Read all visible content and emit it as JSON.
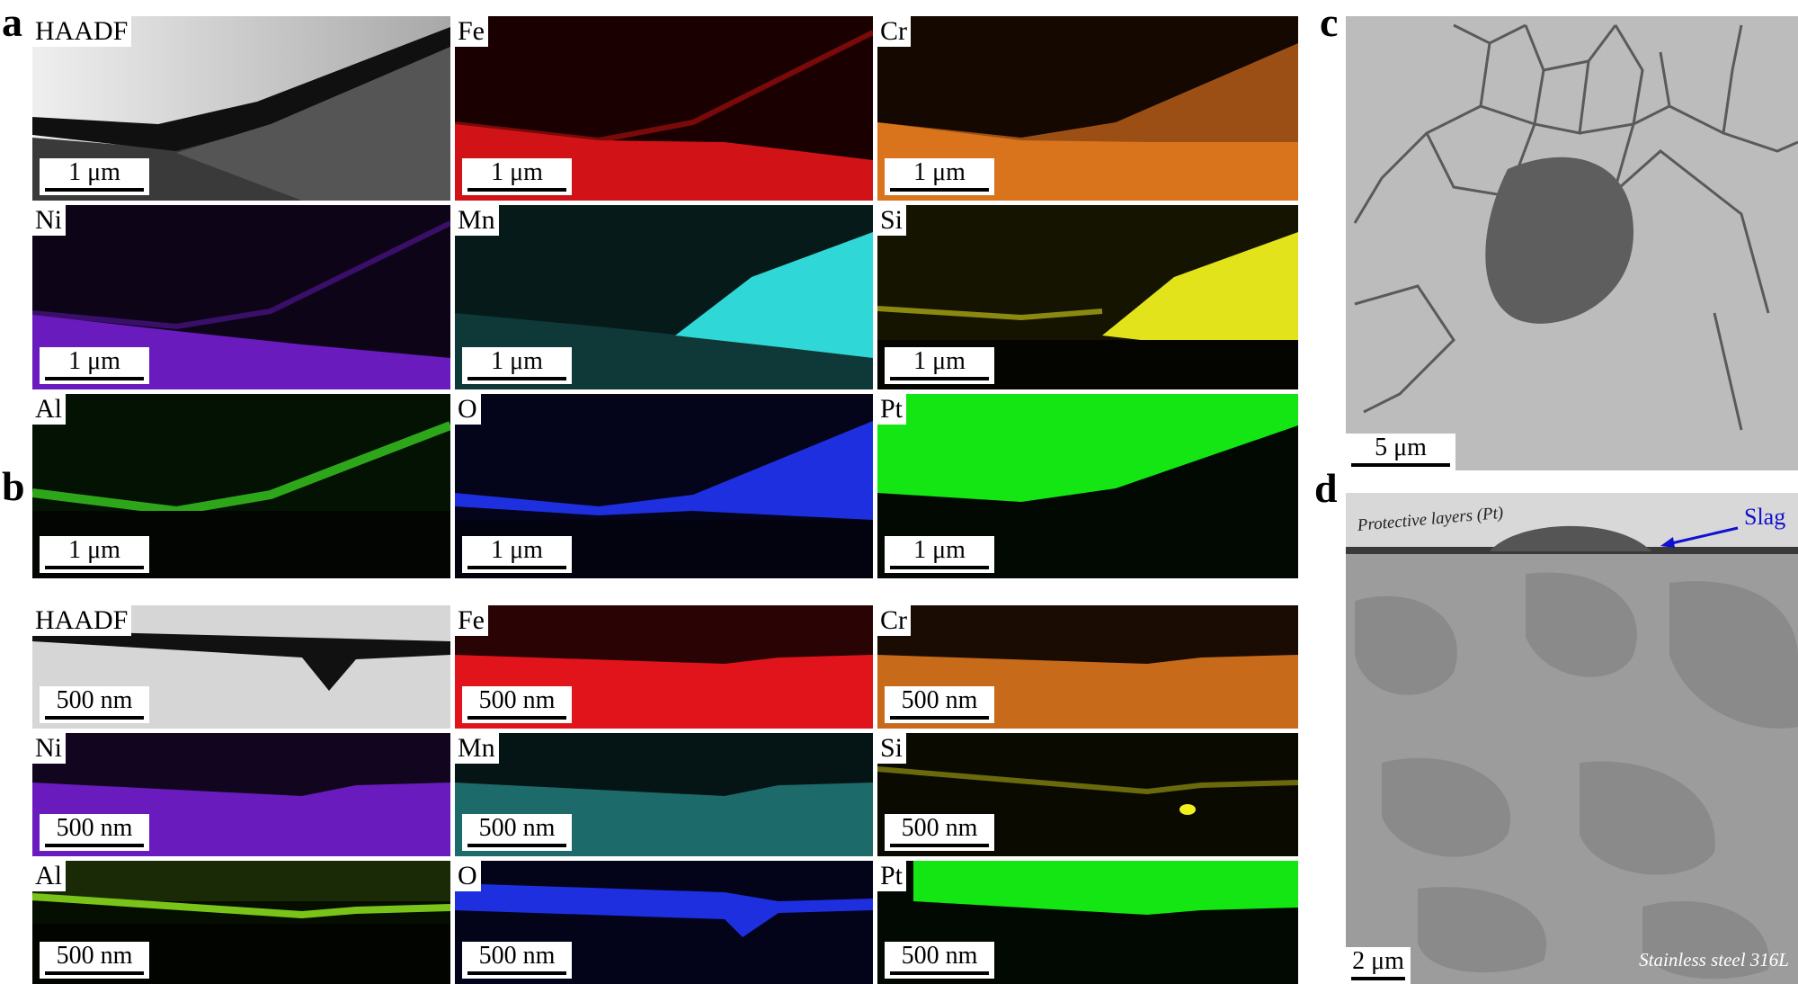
{
  "figure": {
    "panels": {
      "a": {
        "letter": "a",
        "scalebar": "1 μm",
        "tiles": [
          "HAADF",
          "Fe",
          "Cr",
          "Ni",
          "Mn",
          "Si",
          "Al",
          "O",
          "Pt"
        ]
      },
      "b": {
        "letter": "b",
        "scalebar": "500 nm",
        "tiles": [
          "HAADF",
          "Fe",
          "Cr",
          "Ni",
          "Mn",
          "Si",
          "Al",
          "O",
          "Pt"
        ]
      },
      "c": {
        "letter": "c",
        "scalebar": "5 μm"
      },
      "d": {
        "letter": "d",
        "scalebar": "2 μm",
        "protective_label": "Protective layers (Pt)",
        "slag_label": "Slag",
        "substrate_label": "Stainless steel 316L"
      }
    },
    "colors": {
      "Fe": "#e0141a",
      "Cr": "#d9741c",
      "Ni": "#7a1fd6",
      "Mn": "#2fd7d7",
      "Si": "#e3e31c",
      "Al": "#2ea61a",
      "O": "#1e2fe0",
      "Pt": "#14e614",
      "slag_annotation": "#1010d0"
    }
  }
}
